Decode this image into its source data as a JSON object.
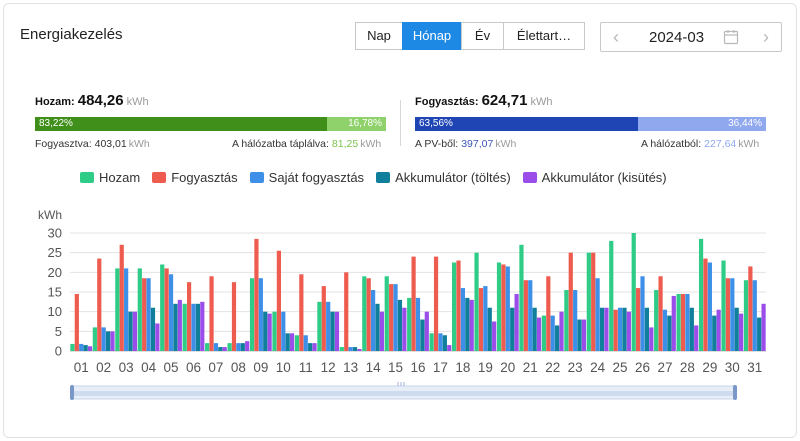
{
  "header": {
    "title": "Energiakezelés"
  },
  "period_tabs": [
    {
      "label": "Nap",
      "active": false
    },
    {
      "label": "Hónap",
      "active": true
    },
    {
      "label": "Év",
      "active": false
    },
    {
      "label": "Élettart…",
      "active": false
    }
  ],
  "date_picker": {
    "value": "2024-03",
    "prev_icon": "chevron-left-icon",
    "next_icon": "chevron-right-icon",
    "calendar_icon": "calendar-icon"
  },
  "yield": {
    "label": "Hozam:",
    "value": "484,26",
    "unit": "kWh",
    "bar_left_pct": "83,22%",
    "bar_right_pct": "16,78%",
    "bar_left_fraction": 0.8322,
    "consumed_label": "Fogyasztva:",
    "consumed_value": "403,01",
    "consumed_unit": "kWh",
    "fed_label": "A hálózatba táplálva:",
    "fed_value": "81,25",
    "fed_unit": "kWh"
  },
  "consumption": {
    "label": "Fogyasztás:",
    "value": "624,71",
    "unit": "kWh",
    "bar_left_pct": "63,56%",
    "bar_right_pct": "36,44%",
    "bar_left_fraction": 0.6356,
    "pv_label": "A PV-ből:",
    "pv_value": "397,07",
    "pv_unit": "kWh",
    "grid_label": "A hálózatból:",
    "grid_value": "227,64",
    "grid_unit": "kWh"
  },
  "colors": {
    "yield_dark": "#3f8f1a",
    "yield_light": "#8fd16a",
    "cons_dark": "#1f45b5",
    "cons_light": "#8fa8ee",
    "hozam": "#2ecc87",
    "fogyasztas": "#ee5b4f",
    "sajat": "#3d8fe8",
    "akku_toltes": "#0f7f9b",
    "akku_kisutes": "#9b4dea"
  },
  "legend": [
    {
      "name": "Hozam",
      "color": "#2ecc87"
    },
    {
      "name": "Fogyasztás",
      "color": "#ee5b4f"
    },
    {
      "name": "Saját fogyasztás",
      "color": "#3d8fe8"
    },
    {
      "name": "Akkumulátor (töltés)",
      "color": "#0f7f9b"
    },
    {
      "name": "Akkumulátor (kisütés)",
      "color": "#9b4dea"
    }
  ],
  "chart_data": {
    "type": "bar",
    "ylabel": "kWh",
    "ylim": [
      0,
      30
    ],
    "yticks": [
      "0",
      "5",
      "10",
      "15",
      "20",
      "25",
      "30"
    ],
    "grid": true,
    "categories": [
      "01",
      "02",
      "03",
      "04",
      "05",
      "06",
      "07",
      "08",
      "09",
      "10",
      "11",
      "12",
      "13",
      "14",
      "15",
      "16",
      "17",
      "18",
      "19",
      "20",
      "21",
      "22",
      "23",
      "24",
      "25",
      "26",
      "27",
      "28",
      "29",
      "30",
      "31"
    ],
    "series": [
      {
        "name": "Hozam",
        "color": "#2ecc87",
        "values": [
          1.8,
          6,
          21,
          21,
          22,
          12,
          2,
          2,
          18.5,
          10,
          4,
          12.5,
          1,
          19,
          19,
          13.5,
          4.5,
          22.5,
          25,
          22.5,
          27,
          9,
          15.5,
          25,
          28,
          30,
          15.5,
          14.5,
          28.5,
          23,
          18
        ]
      },
      {
        "name": "Fogyasztás",
        "color": "#ee5b4f",
        "values": [
          14.5,
          23.5,
          27,
          18.5,
          21,
          17.5,
          19,
          17.5,
          28.5,
          25.5,
          19.5,
          16.5,
          20,
          18.5,
          17,
          24,
          24,
          23,
          16,
          22,
          18,
          19,
          25,
          25,
          10.5,
          16,
          19,
          14.5,
          23.5,
          18.5,
          21.5
        ]
      },
      {
        "name": "Saját fogyasztás",
        "color": "#3d8fe8",
        "values": [
          1.8,
          6,
          21,
          18.5,
          19.5,
          12,
          2,
          2,
          18.5,
          10,
          4,
          12.5,
          1,
          15.5,
          17,
          13.5,
          4.5,
          16,
          16.5,
          21.5,
          18,
          9,
          15.5,
          18.5,
          11,
          19,
          10.5,
          14.5,
          22.5,
          18.5,
          18
        ]
      },
      {
        "name": "Akkumulátor (töltés)",
        "color": "#0f7f9b",
        "values": [
          1.5,
          5,
          10,
          11,
          12,
          12,
          1,
          2,
          10,
          4.5,
          2,
          10,
          1,
          12,
          13,
          8,
          4,
          13.5,
          11,
          11,
          11,
          6.5,
          8,
          11,
          11,
          11,
          9,
          11,
          9,
          11,
          8.5
        ]
      },
      {
        "name": "Akkumulátor (kisütés)",
        "color": "#9b4dea",
        "values": [
          1.2,
          5,
          10,
          7,
          13,
          12.5,
          1,
          2.5,
          9.5,
          4.5,
          2,
          10,
          0.5,
          10,
          11,
          10,
          1.5,
          13,
          7.5,
          14.5,
          8.5,
          10,
          8,
          11,
          10,
          6,
          14,
          6.5,
          10.5,
          9.5,
          12
        ]
      }
    ]
  }
}
